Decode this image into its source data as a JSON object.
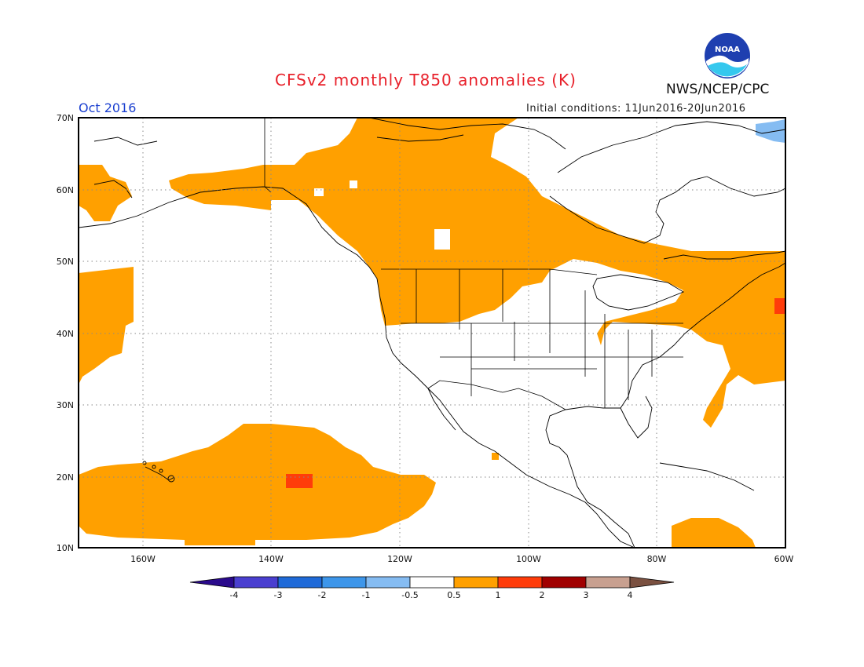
{
  "header": {
    "title": "CFSv2 monthly T850 anomalies (K)",
    "month": "Oct 2016",
    "initial_conditions": "Initial conditions: 11Jun2016-20Jun2016",
    "agency": "NWS/NCEP/CPC",
    "logo_text": "NOAA"
  },
  "map": {
    "lat_labels": [
      "70N",
      "60N",
      "50N",
      "40N",
      "30N",
      "20N",
      "10N"
    ],
    "lon_labels": [
      "160W",
      "140W",
      "120W",
      "100W",
      "80W",
      "60W"
    ],
    "lon_range": [
      -170,
      -60
    ],
    "lat_range": [
      10,
      70
    ]
  },
  "colorbar": {
    "labels": [
      "-4",
      "-3",
      "-2",
      "-1",
      "-0.5",
      "0.5",
      "1",
      "2",
      "3",
      "4"
    ],
    "colors": [
      "#2a0a8c",
      "#4a3fd0",
      "#1f6ad8",
      "#3d96ea",
      "#85bcf2",
      "#ffffff",
      "#ffa000",
      "#ff3c0a",
      "#a00000",
      "#c8a090",
      "#7a5040"
    ]
  },
  "colors": {
    "positive_anomaly": "#ffa000",
    "strong_anomaly": "#ff3c0a",
    "negative_anomaly": "#85bcf2"
  }
}
